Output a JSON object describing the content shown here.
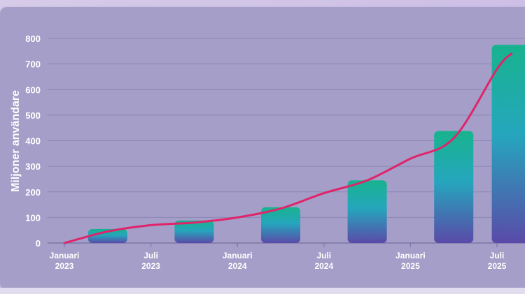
{
  "chart_data": {
    "type": "bar",
    "title": "",
    "ylabel": "Miljoner användare",
    "xlabel": "",
    "ylim": [
      0,
      800
    ],
    "yticks": [
      "0",
      "100",
      "200",
      "300",
      "400",
      "500",
      "600",
      "700",
      "800"
    ],
    "xticks": [
      {
        "line1": "Januari",
        "line2": "2023"
      },
      {
        "line1": "Juli",
        "line2": "2023"
      },
      {
        "line1": "Januari",
        "line2": "2024"
      },
      {
        "line1": "Juli",
        "line2": "2024"
      },
      {
        "line1": "Januari",
        "line2": "2025"
      },
      {
        "line1": "Juli",
        "line2": "2025"
      }
    ],
    "bars": [
      {
        "period": "Apr 2023",
        "value": 55
      },
      {
        "period": "Okt 2023",
        "value": 88
      },
      {
        "period": "Apr 2024",
        "value": 140
      },
      {
        "period": "Okt 2024",
        "value": 245
      },
      {
        "period": "Apr 2025",
        "value": 438
      },
      {
        "period": "Aug 2025",
        "value": 775
      }
    ],
    "trend_line": [
      {
        "period": "Jan 2023",
        "value": 0
      },
      {
        "period": "Apr 2023",
        "value": 45
      },
      {
        "period": "Jul 2023",
        "value": 70
      },
      {
        "period": "Okt 2023",
        "value": 80
      },
      {
        "period": "Jan 2024",
        "value": 100
      },
      {
        "period": "Apr 2024",
        "value": 135
      },
      {
        "period": "Jul 2024",
        "value": 195
      },
      {
        "period": "Okt 2024",
        "value": 245
      },
      {
        "period": "Jan 2025",
        "value": 330
      },
      {
        "period": "Apr 2025",
        "value": 410
      },
      {
        "period": "Jul 2025",
        "value": 680
      },
      {
        "period": "Aug 2025",
        "value": 740
      }
    ],
    "grid": true,
    "colors": {
      "panel": "#a49ec8",
      "grid": "#8c86b4",
      "axis_text": "#ffffff",
      "trend": "#e0246a",
      "bar_top": "#18b38e",
      "bar_mid": "#25a6bd",
      "bar_bottom": "#5a4aa8"
    }
  }
}
